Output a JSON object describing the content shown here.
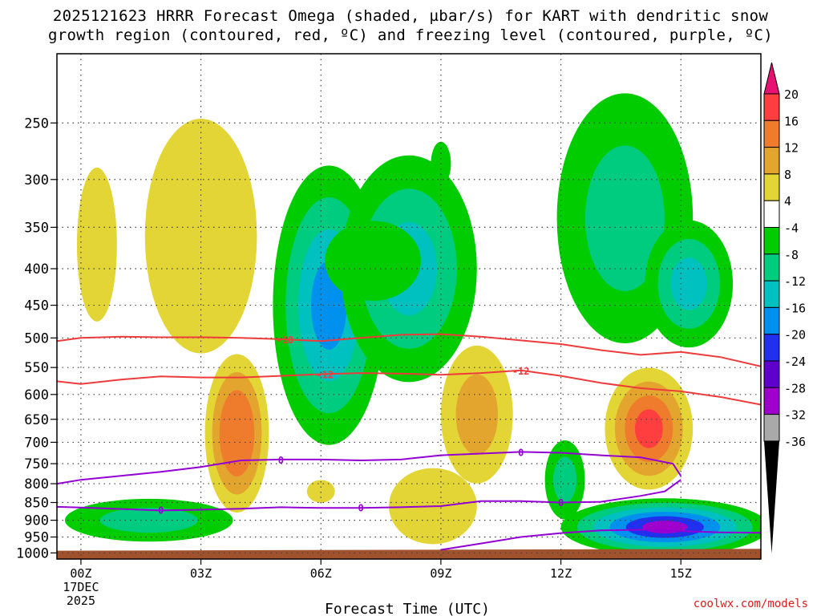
{
  "title_line1": "2025121623 HRRR Forecast Omega (shaded, µbar/s) for KART with dendritic snow",
  "title_line2": "growth region (contoured, red, ºC) and freezing level (contoured, purple, ºC)",
  "credit": "coolwx.com/models",
  "chart_data": {
    "type": "heatmap",
    "title": "2025121623 HRRR Forecast Omega (shaded, µbar/s) for KART with dendritic snow growth region (contoured, red, ºC) and freezing level (contoured, purple, ºC)",
    "xlabel": "Forecast Time (UTC)",
    "ylabel": "",
    "x_range_hours": [
      -0.6,
      17
    ],
    "y_range_hpa": [
      1020,
      200
    ],
    "y_scale": "log-pressure",
    "grid": true,
    "x_ticks": [
      {
        "hour": 0,
        "label": "00Z",
        "sub1": "17DEC",
        "sub2": "2025"
      },
      {
        "hour": 3,
        "label": "03Z"
      },
      {
        "hour": 6,
        "label": "06Z"
      },
      {
        "hour": 9,
        "label": "09Z"
      },
      {
        "hour": 12,
        "label": "12Z"
      },
      {
        "hour": 15,
        "label": "15Z"
      }
    ],
    "y_ticks": [
      250,
      300,
      350,
      400,
      450,
      500,
      550,
      600,
      650,
      700,
      750,
      800,
      850,
      900,
      950,
      1000
    ],
    "colorbar": {
      "labels": [
        "20",
        "16",
        "12",
        "8",
        "4",
        "-4",
        "-8",
        "-12",
        "-16",
        "-20",
        "-24",
        "-28",
        "-32",
        "-36"
      ],
      "colors": [
        "#ff3f3f",
        "#ee7c2c",
        "#e3a52e",
        "#e3d535",
        "#ffffff",
        "#00cc00",
        "#00cc80",
        "#00c0c0",
        "#0090ee",
        "#2030ee",
        "#6000cc",
        "#a000cc",
        "#a9a9a9"
      ],
      "top_color": "#e81070",
      "bottom_color": "#000000"
    },
    "omega_blobs": [
      {
        "x": 0.4,
        "y": 370,
        "rx": 0.5,
        "ry": 90,
        "levels": [
          6
        ]
      },
      {
        "x": 3.0,
        "y": 360,
        "rx": 1.4,
        "ry": 130,
        "levels": [
          6
        ]
      },
      {
        "x": 3.9,
        "y": 680,
        "rx": 0.8,
        "ry": 170,
        "levels": [
          6,
          9,
          13,
          15
        ]
      },
      {
        "x": 1.7,
        "y": 900,
        "rx": 2.1,
        "ry": 62,
        "levels": [
          -6,
          -10
        ]
      },
      {
        "x": 6.2,
        "y": 450,
        "rx": 1.4,
        "ry": 190,
        "levels": [
          -6,
          -10,
          -14,
          -17
        ]
      },
      {
        "x": 8.2,
        "y": 400,
        "rx": 1.7,
        "ry": 140,
        "levels": [
          -6,
          -10,
          -14
        ]
      },
      {
        "x": 7.3,
        "y": 390,
        "rx": 1.2,
        "ry": 50,
        "levels": [
          -6
        ]
      },
      {
        "x": 8.8,
        "y": 860,
        "rx": 1.1,
        "ry": 105,
        "levels": [
          6
        ]
      },
      {
        "x": 6.0,
        "y": 820,
        "rx": 0.35,
        "ry": 30,
        "levels": [
          6
        ]
      },
      {
        "x": 9.9,
        "y": 640,
        "rx": 0.9,
        "ry": 140,
        "levels": [
          6,
          10
        ]
      },
      {
        "x": 9.0,
        "y": 285,
        "rx": 0.25,
        "ry": 20,
        "levels": [
          -6
        ]
      },
      {
        "x": 13.6,
        "y": 340,
        "rx": 1.7,
        "ry": 130,
        "levels": [
          -6,
          -10
        ]
      },
      {
        "x": 15.2,
        "y": 420,
        "rx": 1.1,
        "ry": 85,
        "levels": [
          -6,
          -10,
          -14
        ]
      },
      {
        "x": 14.2,
        "y": 670,
        "rx": 1.1,
        "ry": 130,
        "levels": [
          6,
          10,
          13,
          17
        ]
      },
      {
        "x": 14.6,
        "y": 920,
        "rx": 2.6,
        "ry": 85,
        "levels": [
          -6,
          -10,
          -14,
          -18,
          -22,
          -30
        ]
      },
      {
        "x": 12.1,
        "y": 790,
        "rx": 0.5,
        "ry": 100,
        "levels": [
          -6,
          -10
        ]
      }
    ],
    "series": [
      {
        "name": "-18",
        "color": "#ee3b3b",
        "x": [
          -0.6,
          0,
          1,
          2,
          3,
          4,
          5,
          6,
          7,
          8,
          9,
          10,
          11,
          12,
          13,
          14,
          15,
          16,
          17
        ],
        "y": [
          505,
          500,
          498,
          499,
          499,
          500,
          502,
          505,
          500,
          495,
          494,
          498,
          504,
          510,
          520,
          528,
          523,
          532,
          548
        ]
      },
      {
        "name": "-12",
        "color": "#ee3b3b",
        "x": [
          -0.6,
          0,
          1,
          2,
          3,
          4,
          5,
          6,
          7,
          8,
          9,
          10,
          11,
          12,
          13,
          14,
          15,
          16,
          17
        ],
        "y": [
          575,
          580,
          572,
          566,
          568,
          568,
          565,
          562,
          560,
          561,
          563,
          560,
          555,
          565,
          578,
          588,
          594,
          605,
          620
        ]
      },
      {
        "name": "0",
        "color": "#9400d3",
        "x": [
          -0.6,
          0,
          1,
          2,
          3,
          4,
          5,
          6,
          7,
          8,
          9,
          10,
          11,
          12,
          13,
          14,
          14.8,
          15
        ],
        "y": [
          800,
          790,
          780,
          770,
          758,
          742,
          740,
          740,
          742,
          740,
          730,
          726,
          722,
          724,
          730,
          735,
          750,
          780
        ]
      },
      {
        "name": "0",
        "color": "#9400d3",
        "x": [
          -0.6,
          0,
          1,
          2,
          3,
          4,
          5,
          6,
          7,
          8,
          9,
          10,
          11,
          12,
          13,
          14,
          14.6,
          15
        ],
        "y": [
          862,
          864,
          868,
          872,
          870,
          867,
          863,
          865,
          865,
          863,
          860,
          846,
          846,
          850,
          848,
          832,
          820,
          790
        ]
      },
      {
        "name": "0",
        "color": "#9400d3",
        "x": [
          9.0,
          10.0,
          11.0,
          12.0,
          13.0,
          14.0,
          15.0,
          16.0,
          17.0
        ],
        "y": [
          990,
          970,
          950,
          938,
          930,
          928,
          932,
          936,
          937
        ]
      }
    ],
    "contour_labels": [
      {
        "text": "-18",
        "x": 5.1,
        "y": 503,
        "color": "#ee3b3b"
      },
      {
        "text": "-12",
        "x": 6.1,
        "y": 563,
        "color": "#ee3b3b"
      },
      {
        "text": "-12",
        "x": 11.0,
        "y": 556,
        "color": "#ee3b3b"
      },
      {
        "text": "0",
        "x": 5.0,
        "y": 741,
        "color": "#9400d3"
      },
      {
        "text": "0",
        "x": 11.0,
        "y": 723,
        "color": "#9400d3"
      },
      {
        "text": "0",
        "x": 2.0,
        "y": 871,
        "color": "#9400d3"
      },
      {
        "text": "0",
        "x": 7.0,
        "y": 864,
        "color": "#9400d3"
      },
      {
        "text": "0",
        "x": 12.0,
        "y": 850,
        "color": "#9400d3"
      }
    ],
    "terrain": {
      "color": "#a0522d",
      "surface_hpa": [
        993,
        987
      ],
      "x": [
        -0.6,
        17
      ]
    }
  }
}
